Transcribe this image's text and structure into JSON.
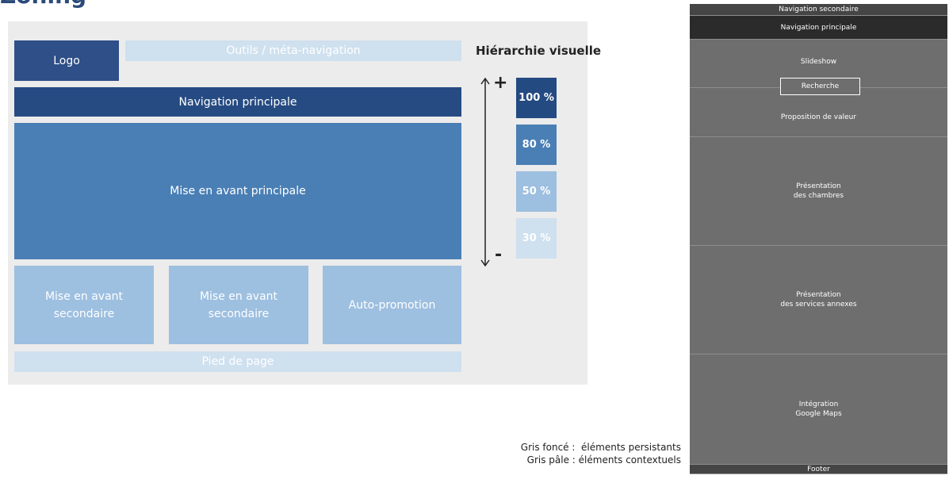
{
  "header": {
    "title": "Zoning"
  },
  "wireframe": {
    "logo": "Logo",
    "tools": "Outils / méta-navigation",
    "main_nav": "Navigation principale",
    "main_feature": "Mise en avant principale",
    "secondary_feature_1": "Mise en avant\nsecondaire",
    "secondary_feature_2": "Mise en avant\nsecondaire",
    "self_promotion": "Auto-promotion",
    "footer": "Pied de page"
  },
  "hierarchy": {
    "title": "Hiérarchie visuelle",
    "plus": "+",
    "minus": "-",
    "levels": [
      "100 %",
      "80 %",
      "50 %",
      "30 %"
    ]
  },
  "grey_mockup": {
    "secondary_nav": "Navigation secondaire",
    "main_nav": "Navigation principale",
    "slideshow": "Slideshow",
    "search": "Recherche",
    "value_proposition": "Proposition de valeur",
    "rooms": "Présentation\ndes chambres",
    "services": "Présentation\ndes services annexes",
    "maps": "Intégration\nGoogle Maps",
    "footer": "Footer"
  },
  "legend": {
    "dark": "Gris foncé :  éléments persistants",
    "light": "Gris pâle : éléments contextuels"
  }
}
